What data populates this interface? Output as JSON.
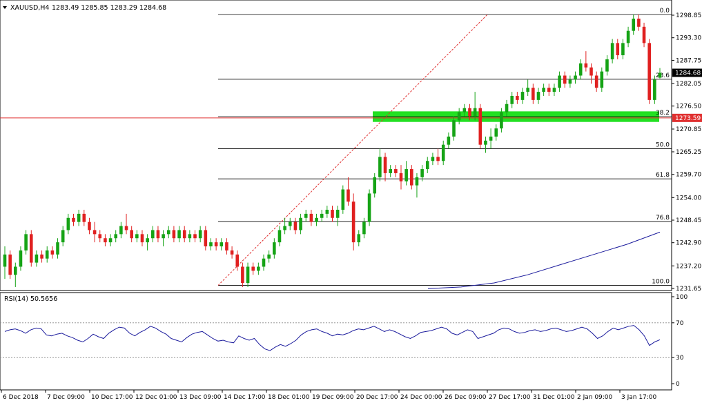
{
  "colors": {
    "bull": "#15a315",
    "bear": "#e02020",
    "ma": "#1a1a9c",
    "fibzone": "#22e022",
    "price_line": "#e03030",
    "fib": "#000000",
    "rsi": "#1a1a9c"
  },
  "header": {
    "symbol": "XAUUSD,H4",
    "ohlc": "1283.49 1285.85 1283.29 1284.68"
  },
  "rsi_panel": {
    "label": "RSI(14) 50.5656"
  },
  "chart_data": {
    "type": "candlestick",
    "title": "XAUUSD,H4",
    "ohlc_readout": "1283.49 1285.85 1283.29 1284.68",
    "y_ticks": [
      "1298.85",
      "1293.30",
      "1287.75",
      "1282.05",
      "1276.50",
      "1270.85",
      "1265.25",
      "1259.70",
      "1254.00",
      "1248.45",
      "1242.90",
      "1237.20",
      "1231.65"
    ],
    "ylim": [
      1230.1,
      1300.8
    ],
    "x_ticks": [
      "6 Dec 2018",
      "7 Dec 09:00",
      "10 Dec 17:00",
      "12 Dec 01:00",
      "13 Dec 09:00",
      "14 Dec 17:00",
      "18 Dec 01:00",
      "19 Dec 09:00",
      "20 Dec 17:00",
      "24 Dec 00:00",
      "26 Dec 09:00",
      "27 Dec 17:00",
      "31 Dec 01:00",
      "2 Jan 09:00",
      "3 Jan 17:00"
    ],
    "current_price": "1284.68",
    "marked_level": "1273.59",
    "fibonacci": [
      {
        "label": "0.0",
        "price": 1299.0
      },
      {
        "label": "23.6",
        "price": 1283.1
      },
      {
        "label": "38.2",
        "price": 1273.9
      },
      {
        "label": "50.0",
        "price": 1266.0
      },
      {
        "label": "61.8",
        "price": 1258.6
      },
      {
        "label": "76.8",
        "price": 1248.1
      },
      {
        "label": "100.0",
        "price": 1232.4
      }
    ],
    "candles": [
      [
        1237,
        1242,
        1234,
        1240
      ],
      [
        1240,
        1241,
        1234,
        1235
      ],
      [
        1235,
        1238,
        1232,
        1237
      ],
      [
        1237,
        1242,
        1236,
        1241
      ],
      [
        1241,
        1246,
        1240,
        1245
      ],
      [
        1245,
        1246,
        1237,
        1238
      ],
      [
        1238,
        1241,
        1237,
        1240
      ],
      [
        1240,
        1241,
        1238,
        1239
      ],
      [
        1239,
        1242,
        1238,
        1241
      ],
      [
        1241,
        1242,
        1239,
        1240
      ],
      [
        1240,
        1244,
        1239,
        1243
      ],
      [
        1243,
        1247,
        1242,
        1246
      ],
      [
        1246,
        1250,
        1245,
        1249
      ],
      [
        1249,
        1250,
        1247,
        1248
      ],
      [
        1248,
        1251,
        1247,
        1250
      ],
      [
        1250,
        1251,
        1247,
        1248
      ],
      [
        1248,
        1249,
        1245,
        1246
      ],
      [
        1246,
        1248,
        1243,
        1245
      ],
      [
        1245,
        1246,
        1243,
        1244
      ],
      [
        1244,
        1245,
        1242,
        1243
      ],
      [
        1243,
        1245,
        1242,
        1244
      ],
      [
        1244,
        1246,
        1243,
        1245
      ],
      [
        1245,
        1248,
        1244,
        1247
      ],
      [
        1247,
        1250,
        1245,
        1246
      ],
      [
        1246,
        1247,
        1243,
        1244
      ],
      [
        1244,
        1246,
        1243,
        1245
      ],
      [
        1245,
        1246,
        1242,
        1243
      ],
      [
        1243,
        1245,
        1241,
        1244
      ],
      [
        1244,
        1247,
        1243,
        1246
      ],
      [
        1246,
        1247,
        1243,
        1244
      ],
      [
        1244,
        1246,
        1242,
        1245
      ],
      [
        1245,
        1247,
        1244,
        1246
      ],
      [
        1246,
        1247,
        1243,
        1244
      ],
      [
        1244,
        1247,
        1243,
        1246
      ],
      [
        1246,
        1247,
        1243,
        1244
      ],
      [
        1244,
        1246,
        1243,
        1245
      ],
      [
        1245,
        1246,
        1243,
        1244
      ],
      [
        1244,
        1247,
        1243,
        1246
      ],
      [
        1246,
        1247,
        1241,
        1242
      ],
      [
        1242,
        1244,
        1241,
        1243
      ],
      [
        1243,
        1244,
        1241,
        1242
      ],
      [
        1242,
        1244,
        1241,
        1243
      ],
      [
        1243,
        1244,
        1240,
        1241
      ],
      [
        1241,
        1242,
        1239,
        1240
      ],
      [
        1240,
        1241,
        1236,
        1237
      ],
      [
        1237,
        1238,
        1232,
        1233
      ],
      [
        1233,
        1238,
        1232,
        1237
      ],
      [
        1237,
        1238,
        1235,
        1236
      ],
      [
        1236,
        1238,
        1235,
        1237
      ],
      [
        1237,
        1240,
        1236,
        1239
      ],
      [
        1239,
        1241,
        1238,
        1240
      ],
      [
        1240,
        1244,
        1239,
        1243
      ],
      [
        1243,
        1247,
        1242,
        1246
      ],
      [
        1246,
        1249,
        1245,
        1247
      ],
      [
        1247,
        1249,
        1246,
        1248
      ],
      [
        1248,
        1249,
        1245,
        1246
      ],
      [
        1246,
        1250,
        1245,
        1249
      ],
      [
        1249,
        1251,
        1248,
        1250
      ],
      [
        1250,
        1251,
        1247,
        1248
      ],
      [
        1248,
        1250,
        1247,
        1249
      ],
      [
        1249,
        1251,
        1248,
        1250
      ],
      [
        1250,
        1252,
        1249,
        1251
      ],
      [
        1251,
        1252,
        1248,
        1249
      ],
      [
        1249,
        1252,
        1247,
        1251
      ],
      [
        1251,
        1257,
        1250,
        1256
      ],
      [
        1256,
        1259,
        1252,
        1253
      ],
      [
        1253,
        1255,
        1241,
        1243
      ],
      [
        1243,
        1246,
        1242,
        1245
      ],
      [
        1245,
        1249,
        1244,
        1248
      ],
      [
        1248,
        1256,
        1247,
        1255
      ],
      [
        1255,
        1260,
        1254,
        1259
      ],
      [
        1259,
        1266,
        1258,
        1264
      ],
      [
        1264,
        1265,
        1258,
        1260
      ],
      [
        1260,
        1262,
        1259,
        1261
      ],
      [
        1261,
        1262,
        1259,
        1260
      ],
      [
        1260,
        1262,
        1256,
        1258
      ],
      [
        1258,
        1263,
        1257,
        1261
      ],
      [
        1261,
        1262,
        1256,
        1257
      ],
      [
        1257,
        1260,
        1254,
        1259
      ],
      [
        1259,
        1262,
        1258,
        1261
      ],
      [
        1261,
        1264,
        1260,
        1263
      ],
      [
        1263,
        1265,
        1262,
        1264
      ],
      [
        1264,
        1266,
        1262,
        1263
      ],
      [
        1263,
        1268,
        1262,
        1267
      ],
      [
        1267,
        1270,
        1266,
        1269
      ],
      [
        1269,
        1274,
        1268,
        1273
      ],
      [
        1273,
        1276,
        1272,
        1275
      ],
      [
        1275,
        1277,
        1274,
        1276
      ],
      [
        1276,
        1277,
        1273,
        1274
      ],
      [
        1274,
        1280,
        1273,
        1276
      ],
      [
        1276,
        1277,
        1266,
        1267
      ],
      [
        1267,
        1269,
        1265,
        1268
      ],
      [
        1268,
        1271,
        1266,
        1269
      ],
      [
        1269,
        1272,
        1268,
        1271
      ],
      [
        1271,
        1276,
        1270,
        1275
      ],
      [
        1275,
        1278,
        1274,
        1277
      ],
      [
        1277,
        1280,
        1276,
        1279
      ],
      [
        1279,
        1280,
        1277,
        1278
      ],
      [
        1278,
        1281,
        1277,
        1280
      ],
      [
        1280,
        1283,
        1279,
        1281
      ],
      [
        1281,
        1282,
        1277,
        1278
      ],
      [
        1278,
        1281,
        1277,
        1280
      ],
      [
        1280,
        1282,
        1279,
        1281
      ],
      [
        1281,
        1282,
        1279,
        1280
      ],
      [
        1280,
        1282,
        1279,
        1281
      ],
      [
        1281,
        1285,
        1280,
        1284
      ],
      [
        1284,
        1285,
        1281,
        1282
      ],
      [
        1282,
        1284,
        1281,
        1283
      ],
      [
        1283,
        1285,
        1282,
        1284
      ],
      [
        1284,
        1288,
        1283,
        1287
      ],
      [
        1287,
        1290,
        1285,
        1286
      ],
      [
        1286,
        1287,
        1282,
        1284
      ],
      [
        1284,
        1285,
        1280,
        1281
      ],
      [
        1281,
        1286,
        1280,
        1285
      ],
      [
        1285,
        1289,
        1284,
        1288
      ],
      [
        1288,
        1293,
        1287,
        1292
      ],
      [
        1292,
        1293,
        1288,
        1289
      ],
      [
        1289,
        1293,
        1288,
        1292
      ],
      [
        1292,
        1296,
        1291,
        1295
      ],
      [
        1295,
        1299,
        1294,
        1298
      ],
      [
        1298,
        1299,
        1295,
        1296
      ],
      [
        1296,
        1297,
        1291,
        1292
      ],
      [
        1292,
        1293,
        1277,
        1278
      ],
      [
        1278,
        1284,
        1277,
        1283
      ],
      [
        1283.49,
        1285.85,
        1283.29,
        1284.68
      ]
    ],
    "ma_values": [
      1231.6,
      1232.0,
      1233.0,
      1235.0,
      1237.5,
      1240.0,
      1242.5,
      1245.5
    ],
    "rsi": {
      "levels": [
        70,
        30
      ],
      "y_ticks": [
        "100",
        "70",
        "30",
        "0"
      ],
      "ylim": [
        0,
        100
      ],
      "values": [
        60,
        62,
        63,
        61,
        58,
        62,
        64,
        63,
        56,
        55,
        57,
        58,
        55,
        53,
        50,
        48,
        52,
        57,
        54,
        52,
        58,
        62,
        65,
        64,
        58,
        55,
        59,
        62,
        66,
        64,
        60,
        57,
        52,
        50,
        48,
        53,
        57,
        59,
        60,
        56,
        52,
        49,
        50,
        48,
        47,
        55,
        52,
        50,
        52,
        45,
        40,
        38,
        42,
        45,
        43,
        46,
        50,
        56,
        60,
        62,
        63,
        60,
        58,
        55,
        57,
        56,
        58,
        61,
        63,
        62,
        64,
        66,
        63,
        60,
        62,
        60,
        57,
        54,
        52,
        55,
        59,
        60,
        61,
        63,
        65,
        63,
        58,
        56,
        59,
        62,
        60,
        52,
        54,
        56,
        58,
        62,
        64,
        63,
        60,
        58,
        59,
        61,
        62,
        60,
        61,
        63,
        64,
        62,
        60,
        61,
        63,
        65,
        63,
        58,
        52,
        55,
        60,
        64,
        62,
        64,
        66,
        67,
        62,
        55,
        44,
        48,
        50.5656
      ]
    }
  }
}
